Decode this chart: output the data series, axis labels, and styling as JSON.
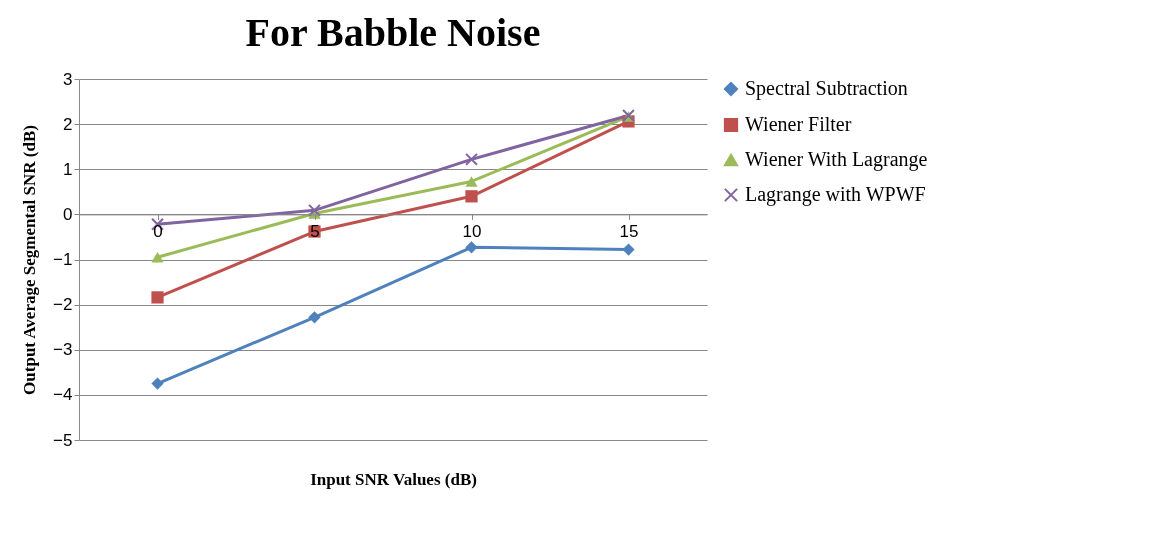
{
  "chart_data": {
    "type": "line",
    "title": "For Babble Noise",
    "xlabel": "Input SNR Values (dB)",
    "ylabel": "Output Average Segmental SNR (dB)",
    "categories": [
      "0",
      "5",
      "10",
      "15"
    ],
    "series": [
      {
        "name": "Spectral Subtraction",
        "color": "#4f81bd",
        "marker": "diamond",
        "values": [
          -3.75,
          -2.28,
          -0.73,
          -0.78
        ]
      },
      {
        "name": "Wiener Filter",
        "color": "#c0504d",
        "marker": "square",
        "values": [
          -1.84,
          -0.38,
          0.4,
          2.06
        ]
      },
      {
        "name": "Wiener With Lagrange",
        "color": "#9bbb59",
        "marker": "triangle",
        "values": [
          -0.95,
          0.02,
          0.73,
          2.17
        ]
      },
      {
        "name": "Lagrange with WPWF",
        "color": "#8064a2",
        "marker": "cross",
        "values": [
          -0.22,
          0.09,
          1.22,
          2.19
        ]
      }
    ],
    "ylim": [
      -5,
      3
    ],
    "yticks": [
      -5,
      -4,
      -3,
      -2,
      -1,
      0,
      1,
      2,
      3
    ],
    "grid": "y",
    "legend": "right"
  }
}
